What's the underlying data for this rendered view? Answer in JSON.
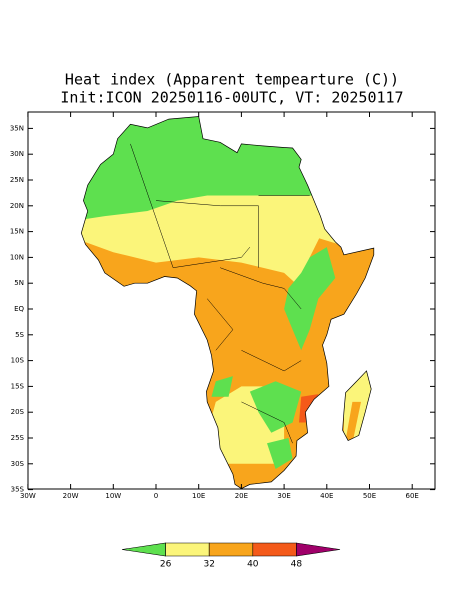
{
  "title": "Heat index (Apparent tempearture (C))",
  "subtitle": "Init:ICON 20250116-00UTC, VT: 20250117",
  "map": {
    "lat_ticks": [
      {
        "value": 35,
        "label": "35N"
      },
      {
        "value": 30,
        "label": "30N"
      },
      {
        "value": 25,
        "label": "25N"
      },
      {
        "value": 20,
        "label": "20N"
      },
      {
        "value": 15,
        "label": "15N"
      },
      {
        "value": 10,
        "label": "10N"
      },
      {
        "value": 5,
        "label": "5N"
      },
      {
        "value": 0,
        "label": "EQ"
      },
      {
        "value": -5,
        "label": "5S"
      },
      {
        "value": -10,
        "label": "10S"
      },
      {
        "value": -15,
        "label": "15S"
      },
      {
        "value": -20,
        "label": "20S"
      },
      {
        "value": -25,
        "label": "25S"
      },
      {
        "value": -30,
        "label": "30S"
      },
      {
        "value": -35,
        "label": "35S"
      }
    ],
    "lon_ticks": [
      {
        "value": -30,
        "label": "30W"
      },
      {
        "value": -20,
        "label": "20W"
      },
      {
        "value": -10,
        "label": "10W"
      },
      0,
      {
        "value": 10,
        "label": "10E"
      },
      {
        "value": 20,
        "label": "20E"
      },
      {
        "value": 30,
        "label": "30E"
      },
      {
        "value": 40,
        "label": "40E"
      },
      {
        "value": 50,
        "label": "50E"
      },
      {
        "value": 60,
        "label": "60E"
      }
    ]
  },
  "colorbar": {
    "levels": [
      26,
      32,
      40,
      48
    ],
    "colors": [
      "#5ee04f",
      "#fbf57a",
      "#f8a51c",
      "#f45a1a",
      "#a0006a"
    ]
  }
}
